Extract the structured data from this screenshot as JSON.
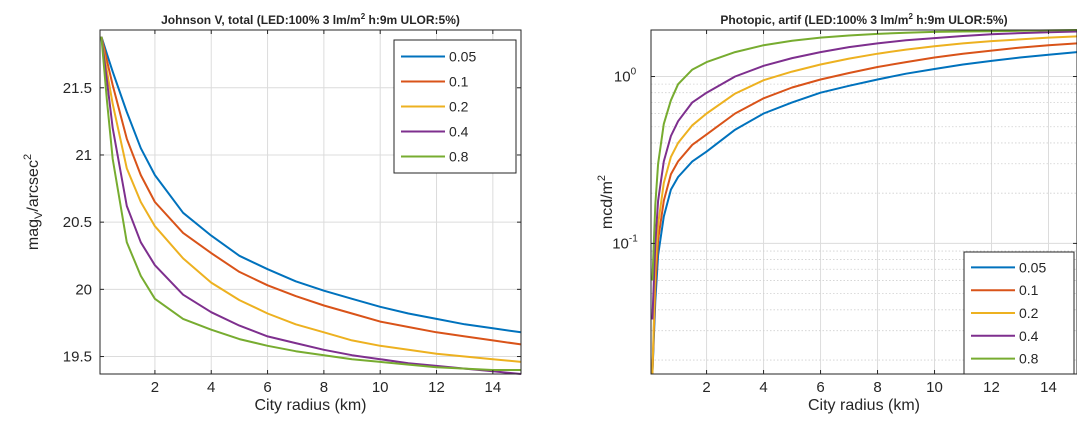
{
  "chart_data": [
    {
      "type": "line",
      "title": "Johnson V, total (LED:100% 3 lm/m² h:9m ULOR:5%)",
      "title_parts": {
        "main": "Johnson V, total (LED:100% 3 lm/m",
        "sup": "2",
        "rest": " h:9m ULOR:5%)"
      },
      "xlabel": "City radius (km)",
      "ylabel_parts": {
        "main": "mag",
        "sub": "V",
        "mid": "/arcsec",
        "sup": "2"
      },
      "xlim": [
        0.05,
        15
      ],
      "ylim": [
        19.37,
        21.93
      ],
      "xticks": [
        2,
        4,
        6,
        8,
        10,
        12,
        14
      ],
      "xtick_labels": [
        "2",
        "4",
        "6",
        "8",
        "10",
        "12",
        "14"
      ],
      "yticks": [
        19.5,
        20,
        20.5,
        21,
        21.5
      ],
      "ytick_labels": [
        "19.5",
        "20",
        "20.5",
        "21",
        "21.5"
      ],
      "yscale": "linear",
      "grid": true,
      "legend_position": "top-right",
      "x": [
        0.1,
        0.3,
        0.5,
        1,
        1.5,
        2,
        3,
        4,
        5,
        6,
        7,
        8,
        9,
        10,
        11,
        12,
        13,
        14,
        15
      ],
      "series": [
        {
          "name": "0.05",
          "color": "#0072BD",
          "values": [
            21.88,
            21.75,
            21.62,
            21.32,
            21.05,
            20.85,
            20.57,
            20.4,
            20.25,
            20.15,
            20.06,
            19.99,
            19.93,
            19.87,
            19.82,
            19.78,
            19.74,
            19.71,
            19.68
          ]
        },
        {
          "name": "0.1",
          "color": "#D95319",
          "values": [
            21.88,
            21.7,
            21.52,
            21.12,
            20.85,
            20.65,
            20.42,
            20.27,
            20.13,
            20.03,
            19.95,
            19.88,
            19.82,
            19.76,
            19.72,
            19.68,
            19.65,
            19.62,
            19.59
          ]
        },
        {
          "name": "0.2",
          "color": "#EDB120",
          "values": [
            21.88,
            21.62,
            21.38,
            20.9,
            20.65,
            20.47,
            20.23,
            20.05,
            19.92,
            19.82,
            19.74,
            19.68,
            19.62,
            19.58,
            19.55,
            19.52,
            19.5,
            19.48,
            19.46
          ]
        },
        {
          "name": "0.4",
          "color": "#7E2F8E",
          "values": [
            21.88,
            21.55,
            21.2,
            20.62,
            20.35,
            20.18,
            19.96,
            19.83,
            19.73,
            19.65,
            19.6,
            19.55,
            19.51,
            19.48,
            19.45,
            19.43,
            19.41,
            19.39,
            19.37
          ]
        },
        {
          "name": "0.8",
          "color": "#77AC30",
          "values": [
            21.88,
            21.4,
            20.97,
            20.35,
            20.1,
            19.93,
            19.78,
            19.7,
            19.63,
            19.58,
            19.54,
            19.51,
            19.48,
            19.46,
            19.44,
            19.42,
            19.41,
            19.4,
            19.4
          ]
        }
      ]
    },
    {
      "type": "line",
      "title": "Photopic, artif (LED:100% 3 lm/m² h:9m ULOR:5%)",
      "title_parts": {
        "main": "Photopic, artif (LED:100% 3 lm/m",
        "sup": "2",
        "rest": " h:9m ULOR:5%)"
      },
      "xlabel": "City radius (km)",
      "ylabel_parts": {
        "main": "mcd/m",
        "sup": "2"
      },
      "xlim": [
        0.05,
        15
      ],
      "ylim": [
        0.0165,
        1.9
      ],
      "xticks": [
        2,
        4,
        6,
        8,
        10,
        12,
        14
      ],
      "xtick_labels": [
        "2",
        "4",
        "6",
        "8",
        "10",
        "12",
        "14"
      ],
      "yticks": [
        0.1,
        1
      ],
      "ytick_labels": [
        {
          "base": "10",
          "exp": "-1"
        },
        {
          "base": "10",
          "exp": "0"
        }
      ],
      "yscale": "log",
      "grid": true,
      "legend_position": "bottom-right",
      "x": [
        0.1,
        0.2,
        0.3,
        0.5,
        0.75,
        1,
        1.5,
        2,
        3,
        4,
        5,
        6,
        7,
        8,
        9,
        10,
        11,
        12,
        13,
        14,
        15
      ],
      "series": [
        {
          "name": "0.05",
          "color": "#0072BD",
          "values": [
            0.0165,
            0.045,
            0.085,
            0.145,
            0.21,
            0.25,
            0.31,
            0.355,
            0.48,
            0.6,
            0.7,
            0.8,
            0.88,
            0.96,
            1.04,
            1.11,
            1.18,
            1.24,
            1.3,
            1.35,
            1.4
          ]
        },
        {
          "name": "0.1",
          "color": "#D95319",
          "values": [
            0.0165,
            0.055,
            0.105,
            0.18,
            0.26,
            0.31,
            0.39,
            0.45,
            0.6,
            0.74,
            0.86,
            0.96,
            1.05,
            1.14,
            1.22,
            1.3,
            1.37,
            1.43,
            1.49,
            1.54,
            1.58
          ]
        },
        {
          "name": "0.2",
          "color": "#EDB120",
          "values": [
            0.0165,
            0.07,
            0.13,
            0.23,
            0.33,
            0.4,
            0.51,
            0.6,
            0.79,
            0.95,
            1.07,
            1.18,
            1.28,
            1.37,
            1.45,
            1.52,
            1.58,
            1.63,
            1.67,
            1.71,
            1.74
          ]
        },
        {
          "name": "0.4",
          "color": "#7E2F8E",
          "values": [
            0.035,
            0.1,
            0.18,
            0.31,
            0.44,
            0.54,
            0.7,
            0.8,
            1.0,
            1.16,
            1.29,
            1.4,
            1.5,
            1.58,
            1.65,
            1.7,
            1.75,
            1.79,
            1.82,
            1.84,
            1.86
          ]
        },
        {
          "name": "0.8",
          "color": "#77AC30",
          "values": [
            0.06,
            0.17,
            0.3,
            0.52,
            0.72,
            0.9,
            1.1,
            1.22,
            1.4,
            1.54,
            1.64,
            1.71,
            1.76,
            1.8,
            1.83,
            1.85,
            1.86,
            1.87,
            1.88,
            1.89,
            1.9
          ]
        }
      ]
    }
  ]
}
